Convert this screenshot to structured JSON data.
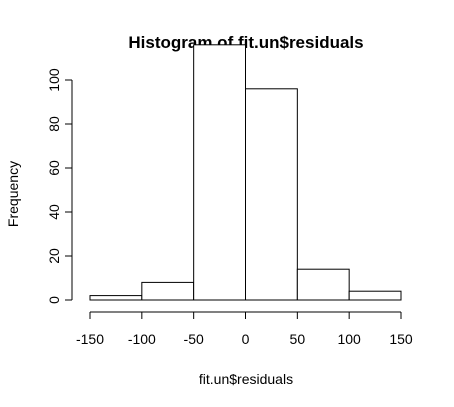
{
  "chart_data": {
    "type": "bar",
    "title": "Histogram of fit.un$residuals",
    "xlabel": "fit.un$residuals",
    "ylabel": "Frequency",
    "bins": [
      {
        "from": -150,
        "to": -100,
        "count": 2
      },
      {
        "from": -100,
        "to": -50,
        "count": 8
      },
      {
        "from": -50,
        "to": 0,
        "count": 116
      },
      {
        "from": 0,
        "to": 50,
        "count": 96
      },
      {
        "from": 50,
        "to": 100,
        "count": 14
      },
      {
        "from": 100,
        "to": 150,
        "count": 4
      }
    ],
    "xlim": [
      -150,
      150
    ],
    "ylim": [
      0,
      120
    ],
    "xticks": [
      "-150",
      "-100",
      "-50",
      "0",
      "50",
      "100",
      "150"
    ],
    "yticks": [
      "0",
      "20",
      "40",
      "60",
      "80",
      "100"
    ],
    "grid": false,
    "colors": {
      "bar_fill": "#ffffff",
      "bar_stroke": "#000000"
    }
  }
}
